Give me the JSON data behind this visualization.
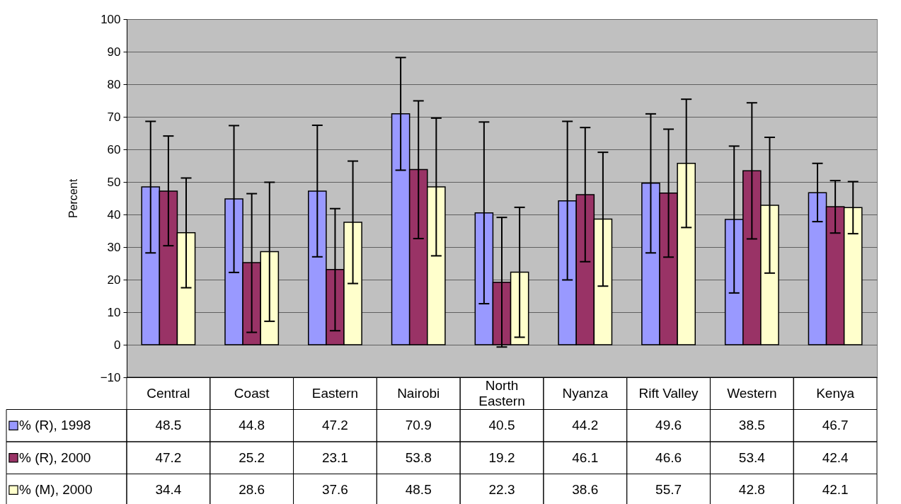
{
  "chart_data": {
    "type": "bar",
    "ylabel": "Percent",
    "categories": [
      "Central",
      "Coast",
      "Eastern",
      "Nairobi",
      "North Eastern",
      "Nyanza",
      "Rift Valley",
      "Western",
      "Kenya"
    ],
    "series": [
      {
        "name": "% (R), 1998",
        "color": "#9999ff",
        "values": [
          48.5,
          44.8,
          47.2,
          70.9,
          40.5,
          44.2,
          49.6,
          38.5,
          46.7
        ],
        "errors": [
          [
            28.2,
            68.6
          ],
          [
            22.2,
            67.3
          ],
          [
            27.0,
            67.4
          ],
          [
            53.6,
            88.2
          ],
          [
            12.6,
            68.4
          ],
          [
            19.9,
            68.6
          ],
          [
            28.2,
            70.9
          ],
          [
            15.9,
            61.0
          ],
          [
            37.8,
            55.7
          ]
        ]
      },
      {
        "name": "% (R), 2000",
        "color": "#993366",
        "values": [
          47.2,
          25.2,
          23.1,
          53.8,
          19.2,
          46.1,
          46.6,
          53.4,
          42.4
        ],
        "errors": [
          [
            30.4,
            64.1
          ],
          [
            3.8,
            46.4
          ],
          [
            4.3,
            41.8
          ],
          [
            32.6,
            74.9
          ],
          [
            -0.7,
            39.1
          ],
          [
            25.5,
            66.7
          ],
          [
            26.9,
            66.2
          ],
          [
            32.5,
            74.3
          ],
          [
            34.3,
            50.4
          ]
        ]
      },
      {
        "name": "% (M), 2000",
        "color": "#ffffcc",
        "values": [
          34.4,
          28.6,
          37.6,
          48.5,
          22.3,
          38.6,
          55.7,
          42.8,
          42.1
        ],
        "errors": [
          [
            17.5,
            51.2
          ],
          [
            7.2,
            49.9
          ],
          [
            18.8,
            56.4
          ],
          [
            27.3,
            69.6
          ],
          [
            2.3,
            42.2
          ],
          [
            18.0,
            59.1
          ],
          [
            36.0,
            75.4
          ],
          [
            22.0,
            63.7
          ],
          [
            34.1,
            50.1
          ]
        ]
      }
    ],
    "ylim": [
      -10,
      100
    ],
    "yticks": [
      -10,
      0,
      10,
      20,
      30,
      40,
      50,
      60,
      70,
      80,
      90,
      100
    ],
    "grid": "y",
    "legend": "bottom left",
    "data_labels": true
  }
}
